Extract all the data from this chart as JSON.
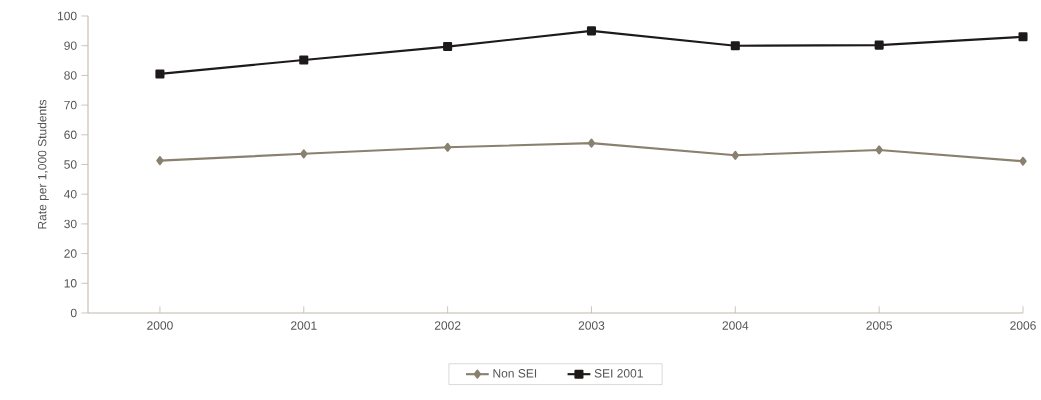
{
  "chart_data": {
    "type": "line",
    "ylabel": "Rate per 1,000 Students",
    "categories": [
      "2000",
      "2001",
      "2002",
      "2003",
      "2004",
      "2005",
      "2006"
    ],
    "series": [
      {
        "name": "Non SEI",
        "color": "#8a8070",
        "marker": "diamond",
        "values": [
          51.3,
          53.6,
          55.8,
          57.2,
          53.1,
          54.9,
          51.1
        ]
      },
      {
        "name": "SEI 2001",
        "color": "#1e1a1a",
        "marker": "square",
        "values": [
          80.5,
          85.2,
          89.7,
          95.0,
          90.0,
          90.2,
          93.0
        ]
      }
    ],
    "ylim": [
      0,
      100
    ],
    "yticks": [
      0,
      10,
      20,
      30,
      40,
      50,
      60,
      70,
      80,
      90,
      100
    ],
    "legend": "bottom",
    "line_style": "solid"
  }
}
